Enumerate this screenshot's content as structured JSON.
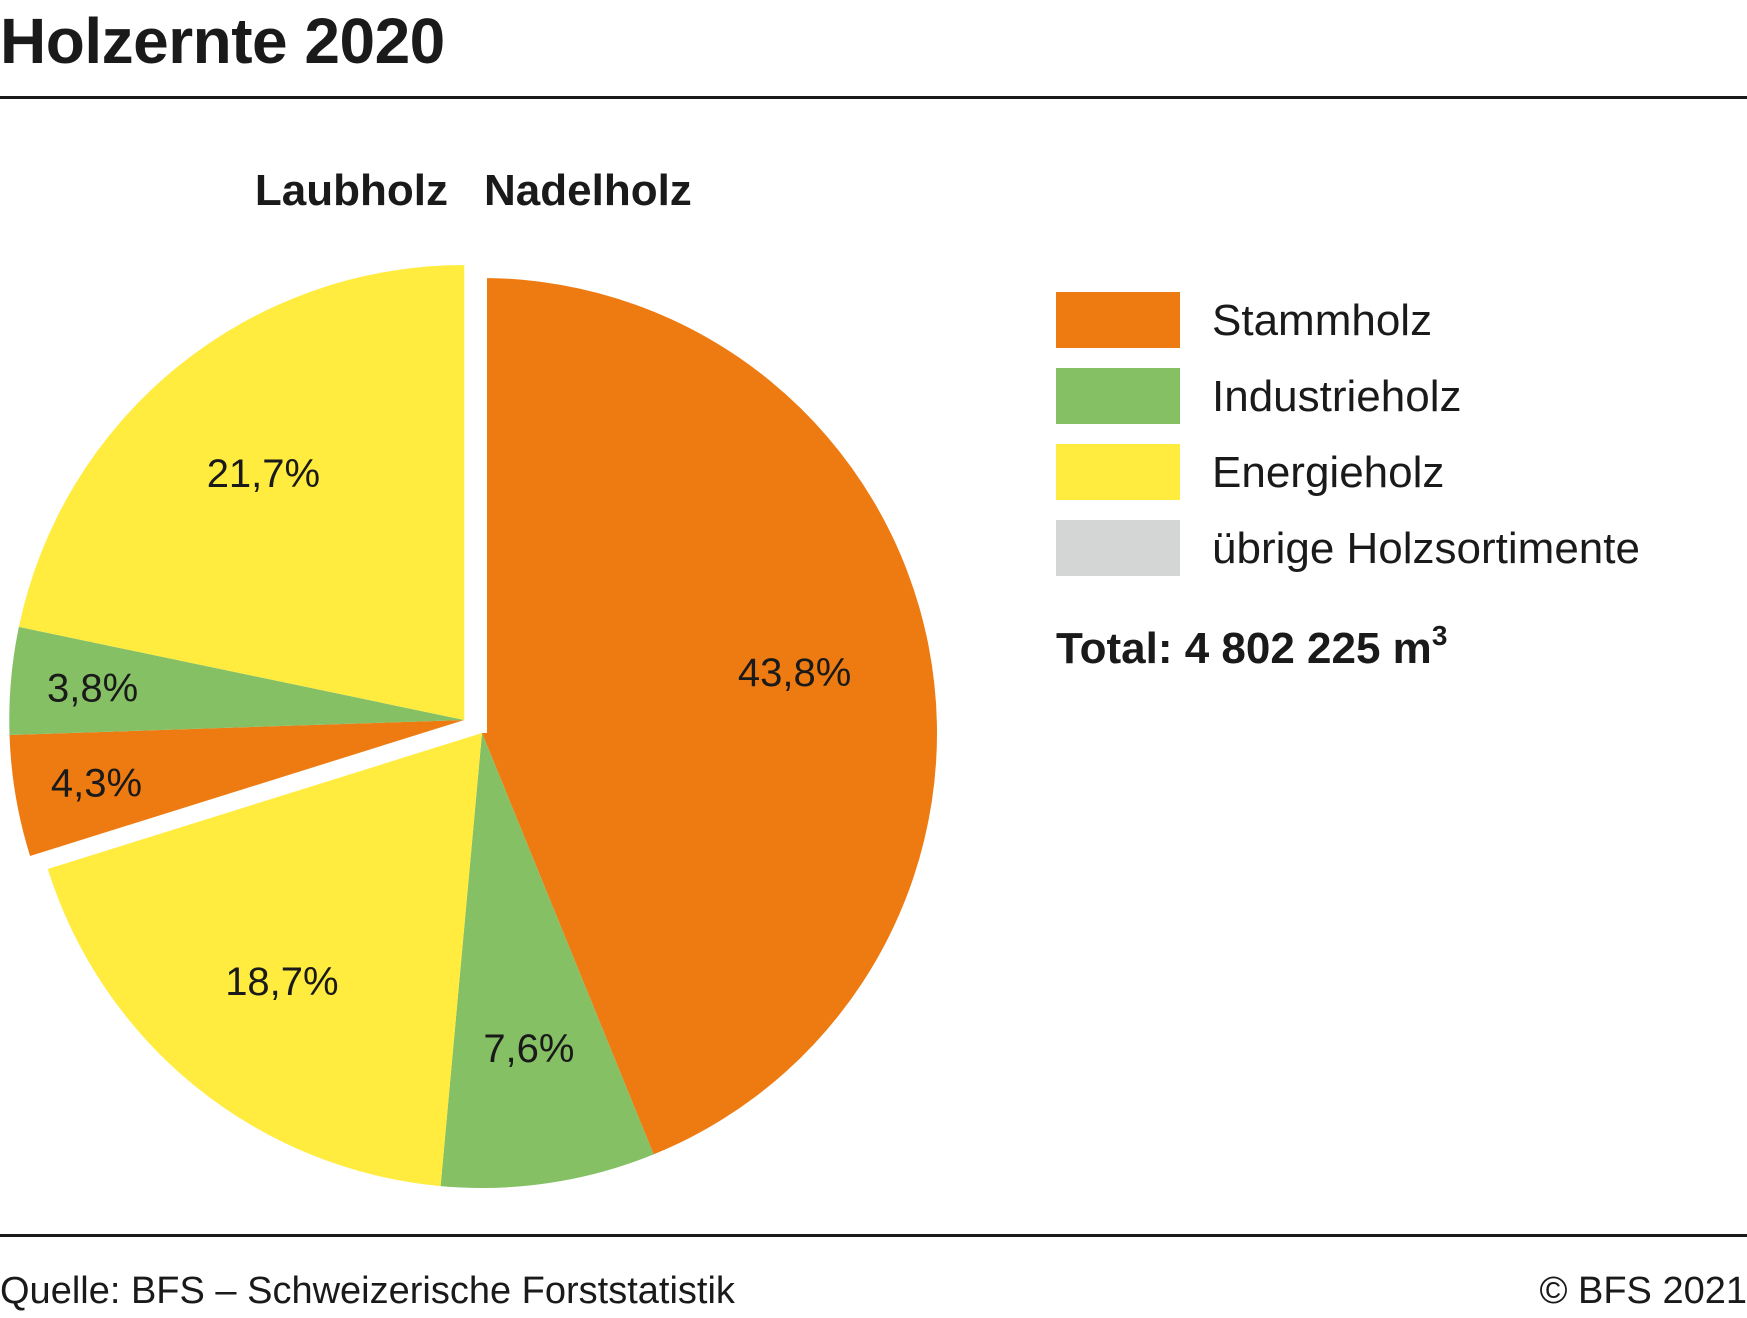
{
  "title": "Holzernte 2020",
  "group_labels": {
    "laubholz": "Laubholz",
    "nadelholz": "Nadelholz"
  },
  "legend": [
    {
      "label": "Stammholz",
      "color": "#ee7b11"
    },
    {
      "label": "Industrieholz",
      "color": "#85c064"
    },
    {
      "label": "Energieholz",
      "color": "#ffec3f"
    },
    {
      "label": "übrige Holzsortimente",
      "color": "#d4d6d5"
    }
  ],
  "total": {
    "label": "Total: 4 802 225 m",
    "superscript": "3"
  },
  "source": "Quelle: BFS – Schweizerische Forststatistik",
  "copyright": "© BFS 2021",
  "chart_data": {
    "type": "pie",
    "title": "Holzernte 2020",
    "groups": [
      "Nadelholz",
      "Laubholz"
    ],
    "slices": [
      {
        "group": "Nadelholz",
        "category": "Stammholz",
        "value": 43.8,
        "label": "43,8%",
        "color": "#ee7b11"
      },
      {
        "group": "Nadelholz",
        "category": "Industrieholz",
        "value": 7.6,
        "label": "7,6%",
        "color": "#85c064"
      },
      {
        "group": "Nadelholz",
        "category": "Energieholz",
        "value": 18.7,
        "label": "18,7%",
        "color": "#ffec3f"
      },
      {
        "group": "Laubholz",
        "category": "Stammholz",
        "value": 4.3,
        "label": "4,3%",
        "color": "#ee7b11"
      },
      {
        "group": "Laubholz",
        "category": "Industrieholz",
        "value": 3.8,
        "label": "3,8%",
        "color": "#85c064"
      },
      {
        "group": "Laubholz",
        "category": "Energieholz",
        "value": 21.7,
        "label": "21,7%",
        "color": "#ffec3f"
      }
    ],
    "legend_position": "right"
  }
}
